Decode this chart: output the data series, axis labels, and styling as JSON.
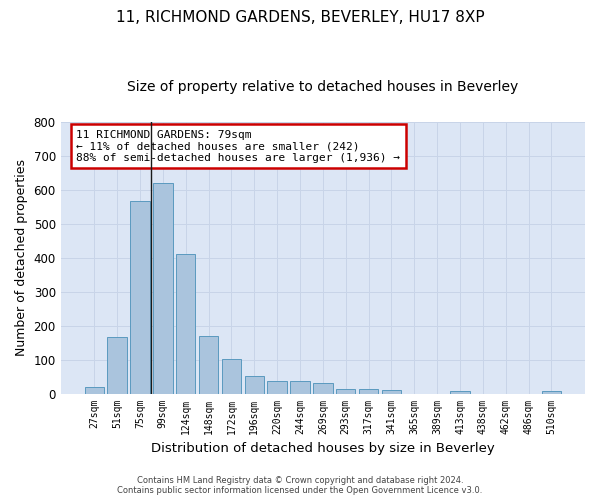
{
  "title": "11, RICHMOND GARDENS, BEVERLEY, HU17 8XP",
  "subtitle": "Size of property relative to detached houses in Beverley",
  "xlabel": "Distribution of detached houses by size in Beverley",
  "ylabel": "Number of detached properties",
  "categories": [
    "27sqm",
    "51sqm",
    "75sqm",
    "99sqm",
    "124sqm",
    "148sqm",
    "172sqm",
    "196sqm",
    "220sqm",
    "244sqm",
    "269sqm",
    "293sqm",
    "317sqm",
    "341sqm",
    "365sqm",
    "389sqm",
    "413sqm",
    "438sqm",
    "462sqm",
    "486sqm",
    "510sqm"
  ],
  "values": [
    18,
    165,
    565,
    620,
    410,
    170,
    103,
    52,
    38,
    38,
    30,
    13,
    13,
    10,
    0,
    0,
    8,
    0,
    0,
    0,
    7
  ],
  "bar_color": "#aac4dd",
  "bar_edge_color": "#5a9abf",
  "vline_index": 2,
  "annotation_text": "11 RICHMOND GARDENS: 79sqm\n← 11% of detached houses are smaller (242)\n88% of semi-detached houses are larger (1,936) →",
  "annotation_box_color": "#ffffff",
  "annotation_box_edge_color": "#cc0000",
  "vline_color": "#1a1a1a",
  "grid_color": "#c8d4e8",
  "background_color": "#dce6f5",
  "footer_line1": "Contains HM Land Registry data © Crown copyright and database right 2024.",
  "footer_line2": "Contains public sector information licensed under the Open Government Licence v3.0.",
  "ylim": [
    0,
    800
  ],
  "title_fontsize": 11,
  "subtitle_fontsize": 10,
  "xlabel_fontsize": 9.5,
  "ylabel_fontsize": 9
}
